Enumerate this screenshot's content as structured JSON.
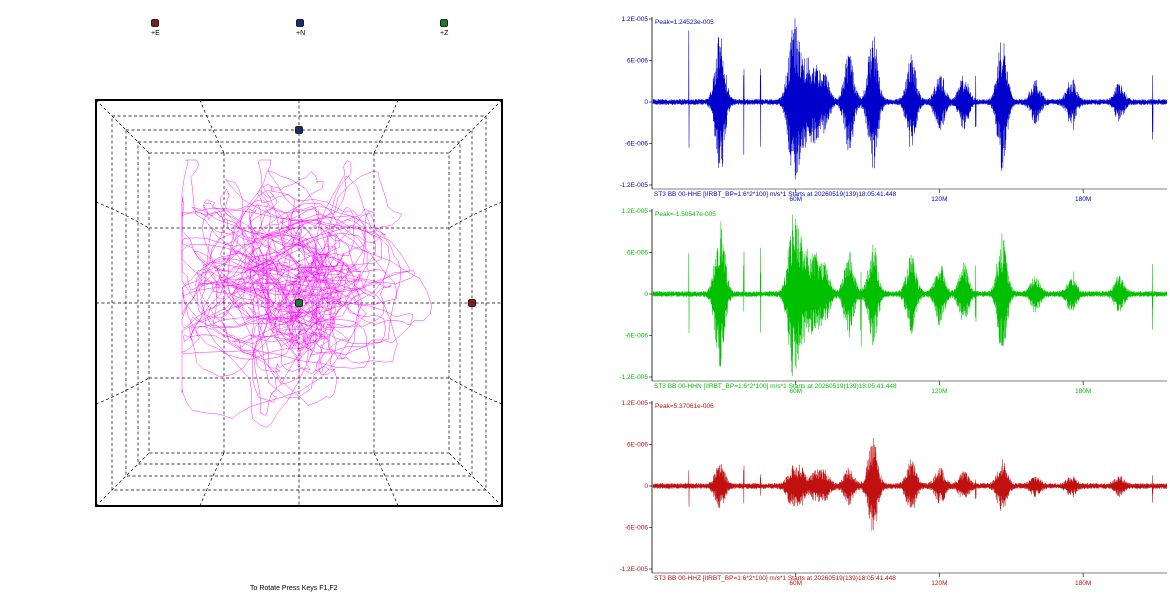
{
  "particle_motion": {
    "legend": [
      {
        "label": "+E",
        "color": "#7a1f1f"
      },
      {
        "label": "+N",
        "color": "#1c2b6e"
      },
      {
        "label": "+Z",
        "color": "#1f7a2a"
      }
    ],
    "trace_color": "#ff00ff",
    "hint": "To Rotate Press Keys F1,F2"
  },
  "chart_data": [
    {
      "type": "line",
      "channel": "HHE",
      "color": "#0000cc",
      "peak_label": "Peak=1.24523e-005",
      "header": "ST3 BB 00-HHE  [IIRBT_BP=1:6*2*100] m/s*1 Starts at 20260519(139)18:05:41.448",
      "yticks": [
        "1.2E-005",
        "6E-006",
        "0",
        "-6E-006",
        "-1.2E-005"
      ],
      "ylim": [
        -1.2e-05,
        1.2e-05
      ],
      "xticks": [
        "60M",
        "120M",
        "180M"
      ],
      "bursts": [
        [
          28,
          0.9
        ],
        [
          58,
          0.6
        ],
        [
          60,
          0.55
        ],
        [
          64,
          0.45
        ],
        [
          68,
          0.4
        ],
        [
          72,
          0.3
        ],
        [
          82,
          0.6
        ],
        [
          92,
          0.85
        ],
        [
          108,
          0.55
        ],
        [
          120,
          0.35
        ],
        [
          130,
          0.3
        ],
        [
          146,
          0.8
        ],
        [
          160,
          0.25
        ],
        [
          175,
          0.25
        ],
        [
          195,
          0.2
        ]
      ],
      "spikes": [
        [
          15,
          0.95
        ],
        [
          38,
          0.65
        ],
        [
          45,
          0.6
        ],
        [
          135,
          0.35
        ],
        [
          176,
          0.35
        ],
        [
          209,
          0.5
        ]
      ]
    },
    {
      "type": "line",
      "channel": "HHN",
      "color": "#00c000",
      "peak_label": "Peak=-1.50547e-005",
      "header": "ST3 BB 00-HHN  [IIRBT_BP=1:6*2*100] m/s*1 Starts at 20260519(139)18:05:41.448",
      "yticks": [
        "1.2E-005",
        "6E-006",
        "0",
        "-6E-006",
        "-1.2E-005"
      ],
      "ylim": [
        -1.2e-05,
        1.2e-05
      ],
      "xticks": [
        "60M",
        "120M",
        "180M"
      ],
      "bursts": [
        [
          28,
          0.9
        ],
        [
          58,
          0.6
        ],
        [
          60,
          0.55
        ],
        [
          64,
          0.45
        ],
        [
          68,
          0.4
        ],
        [
          72,
          0.3
        ],
        [
          82,
          0.5
        ],
        [
          92,
          0.6
        ],
        [
          108,
          0.45
        ],
        [
          120,
          0.35
        ],
        [
          130,
          0.35
        ],
        [
          146,
          0.7
        ],
        [
          160,
          0.2
        ],
        [
          175,
          0.2
        ],
        [
          195,
          0.2
        ]
      ],
      "spikes": [
        [
          15,
          0.7
        ],
        [
          38,
          0.55
        ],
        [
          45,
          0.65
        ],
        [
          62,
          0.8
        ],
        [
          87,
          0.7
        ],
        [
          135,
          0.45
        ],
        [
          176,
          0.4
        ],
        [
          209,
          0.45
        ]
      ]
    },
    {
      "type": "line",
      "channel": "HHZ",
      "color": "#c01010",
      "peak_label": "Peak=5.37061e-006",
      "header": "ST3 BB 00-HHZ  [IIRBT_BP=1:6*2*100] m/s*1 Starts at 20260519(139)18:05:41.448",
      "yticks": [
        "1.2E-005",
        "6E-006",
        "0",
        "-6E-006",
        "-1.2E-005"
      ],
      "ylim": [
        -1.2e-05,
        1.2e-05
      ],
      "xticks": [
        "60M",
        "120M",
        "180M"
      ],
      "bursts": [
        [
          28,
          0.25
        ],
        [
          58,
          0.2
        ],
        [
          62,
          0.2
        ],
        [
          68,
          0.15
        ],
        [
          72,
          0.15
        ],
        [
          82,
          0.2
        ],
        [
          92,
          0.55
        ],
        [
          108,
          0.3
        ],
        [
          120,
          0.2
        ],
        [
          130,
          0.15
        ],
        [
          146,
          0.3
        ],
        [
          160,
          0.1
        ],
        [
          175,
          0.1
        ],
        [
          195,
          0.1
        ]
      ],
      "spikes": [
        [
          15,
          0.4
        ],
        [
          38,
          0.25
        ],
        [
          45,
          0.2
        ],
        [
          135,
          0.2
        ],
        [
          176,
          0.15
        ],
        [
          209,
          0.25
        ]
      ]
    }
  ]
}
